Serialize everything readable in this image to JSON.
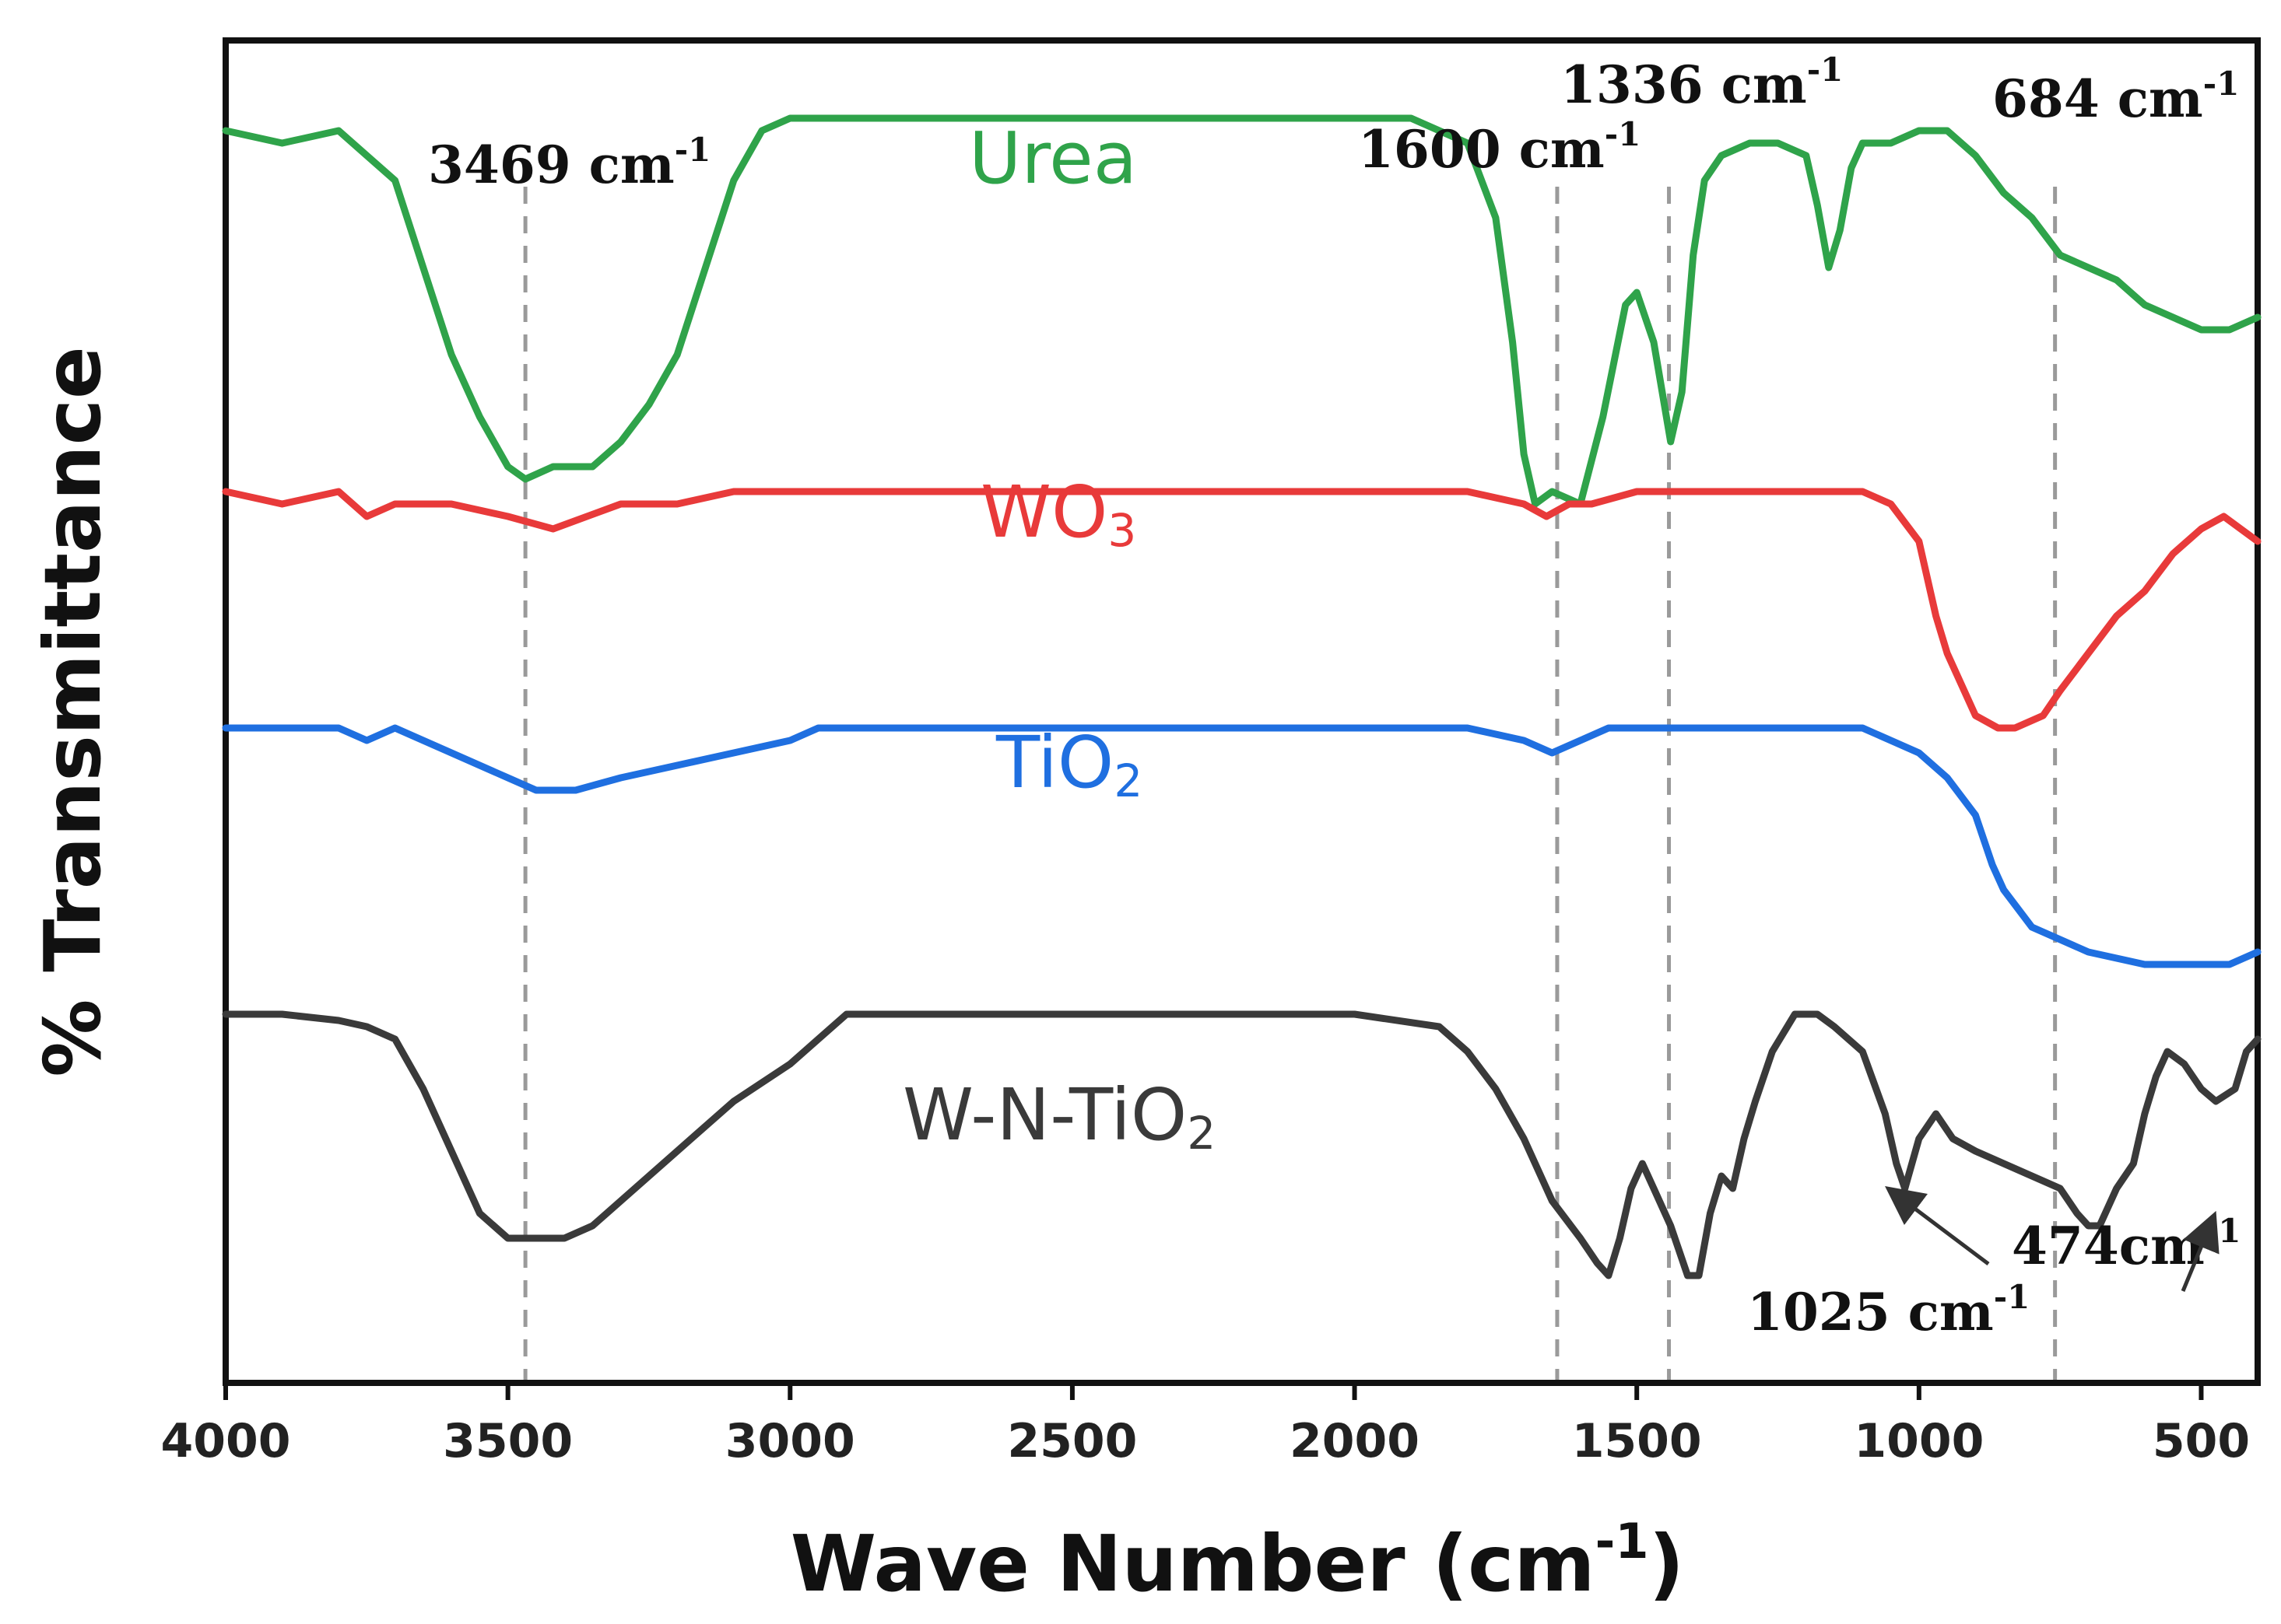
{
  "chart_data": {
    "type": "line",
    "title": "",
    "xlabel": "Wave Number (cm",
    "xlabel_sup": "-1",
    "xlabel_close": ")",
    "ylabel": "% Transmittance",
    "xlim": [
      4000,
      400
    ],
    "xticks": [
      4000,
      3500,
      3000,
      2500,
      2000,
      1500,
      1000,
      500
    ],
    "tick_labels": [
      "4000",
      "3500",
      "3000",
      "2500",
      "2000",
      "1500",
      "1000",
      "500"
    ],
    "yrange_arbitrary": [
      0,
      100
    ],
    "series": [
      {
        "name": "Urea",
        "label_main": "Urea",
        "label_sub": "",
        "color": "#2fa34a",
        "points": [
          [
            4000,
            97
          ],
          [
            3900,
            96
          ],
          [
            3800,
            97
          ],
          [
            3750,
            95
          ],
          [
            3700,
            93
          ],
          [
            3650,
            86
          ],
          [
            3600,
            79
          ],
          [
            3550,
            74
          ],
          [
            3500,
            70
          ],
          [
            3469,
            69
          ],
          [
            3420,
            70
          ],
          [
            3350,
            70
          ],
          [
            3300,
            72
          ],
          [
            3250,
            75
          ],
          [
            3200,
            79
          ],
          [
            3150,
            86
          ],
          [
            3100,
            93
          ],
          [
            3050,
            97
          ],
          [
            3000,
            98
          ],
          [
            2900,
            98
          ],
          [
            2700,
            98
          ],
          [
            2500,
            98
          ],
          [
            2300,
            98
          ],
          [
            2100,
            98
          ],
          [
            1900,
            98
          ],
          [
            1800,
            96
          ],
          [
            1750,
            90
          ],
          [
            1720,
            80
          ],
          [
            1700,
            71
          ],
          [
            1680,
            67
          ],
          [
            1650,
            68
          ],
          [
            1600,
            67
          ],
          [
            1560,
            74
          ],
          [
            1520,
            83
          ],
          [
            1500,
            84
          ],
          [
            1470,
            80
          ],
          [
            1440,
            72
          ],
          [
            1420,
            76
          ],
          [
            1400,
            87
          ],
          [
            1380,
            93
          ],
          [
            1350,
            95
          ],
          [
            1300,
            96
          ],
          [
            1250,
            96
          ],
          [
            1200,
            95
          ],
          [
            1180,
            91
          ],
          [
            1160,
            86
          ],
          [
            1140,
            89
          ],
          [
            1120,
            94
          ],
          [
            1100,
            96
          ],
          [
            1050,
            96
          ],
          [
            1000,
            97
          ],
          [
            950,
            97
          ],
          [
            900,
            95
          ],
          [
            850,
            92
          ],
          [
            800,
            90
          ],
          [
            750,
            87
          ],
          [
            700,
            86
          ],
          [
            650,
            85
          ],
          [
            600,
            83
          ],
          [
            550,
            82
          ],
          [
            500,
            81
          ],
          [
            450,
            81
          ],
          [
            400,
            82
          ]
        ]
      },
      {
        "name": "WO3",
        "label_main": "WO",
        "label_sub": "3",
        "color": "#e83a3a",
        "points": [
          [
            4000,
            68
          ],
          [
            3900,
            67
          ],
          [
            3800,
            68
          ],
          [
            3750,
            66
          ],
          [
            3700,
            67
          ],
          [
            3600,
            67
          ],
          [
            3500,
            66
          ],
          [
            3420,
            65
          ],
          [
            3300,
            67
          ],
          [
            3200,
            67
          ],
          [
            3100,
            68
          ],
          [
            3000,
            68
          ],
          [
            2800,
            68
          ],
          [
            2500,
            68
          ],
          [
            2200,
            68
          ],
          [
            2000,
            68
          ],
          [
            1800,
            68
          ],
          [
            1700,
            67
          ],
          [
            1660,
            66
          ],
          [
            1620,
            67
          ],
          [
            1580,
            67
          ],
          [
            1500,
            68
          ],
          [
            1400,
            68
          ],
          [
            1300,
            68
          ],
          [
            1200,
            68
          ],
          [
            1100,
            68
          ],
          [
            1050,
            67
          ],
          [
            1000,
            64
          ],
          [
            970,
            58
          ],
          [
            950,
            55
          ],
          [
            900,
            50
          ],
          [
            860,
            49
          ],
          [
            830,
            49
          ],
          [
            780,
            50
          ],
          [
            750,
            52
          ],
          [
            700,
            55
          ],
          [
            650,
            58
          ],
          [
            600,
            60
          ],
          [
            550,
            63
          ],
          [
            500,
            65
          ],
          [
            460,
            66
          ],
          [
            430,
            65
          ],
          [
            400,
            64
          ]
        ]
      },
      {
        "name": "TiO2",
        "label_main": "TiO",
        "label_sub": "2",
        "color": "#1f6fe0",
        "points": [
          [
            4000,
            49
          ],
          [
            3900,
            49
          ],
          [
            3800,
            49
          ],
          [
            3750,
            48
          ],
          [
            3700,
            49
          ],
          [
            3650,
            48
          ],
          [
            3600,
            47
          ],
          [
            3500,
            45
          ],
          [
            3450,
            44
          ],
          [
            3380,
            44
          ],
          [
            3300,
            45
          ],
          [
            3200,
            46
          ],
          [
            3100,
            47
          ],
          [
            3000,
            48
          ],
          [
            2950,
            49
          ],
          [
            2800,
            49
          ],
          [
            2500,
            49
          ],
          [
            2200,
            49
          ],
          [
            2000,
            49
          ],
          [
            1800,
            49
          ],
          [
            1700,
            48
          ],
          [
            1650,
            47
          ],
          [
            1600,
            48
          ],
          [
            1550,
            49
          ],
          [
            1500,
            49
          ],
          [
            1400,
            49
          ],
          [
            1300,
            49
          ],
          [
            1200,
            49
          ],
          [
            1100,
            49
          ],
          [
            1050,
            48
          ],
          [
            1000,
            47
          ],
          [
            950,
            45
          ],
          [
            900,
            42
          ],
          [
            870,
            38
          ],
          [
            850,
            36
          ],
          [
            800,
            33
          ],
          [
            750,
            32
          ],
          [
            700,
            31
          ],
          [
            650,
            30.5
          ],
          [
            600,
            30
          ],
          [
            500,
            30
          ],
          [
            450,
            30
          ],
          [
            400,
            31
          ]
        ]
      },
      {
        "name": "W-N-TiO2",
        "label_main": "W-N-TiO",
        "label_sub": "2",
        "color": "#3a3a3a",
        "points": [
          [
            4000,
            26
          ],
          [
            3900,
            26
          ],
          [
            3800,
            25.5
          ],
          [
            3750,
            25
          ],
          [
            3700,
            24
          ],
          [
            3650,
            20
          ],
          [
            3600,
            15
          ],
          [
            3550,
            10
          ],
          [
            3500,
            8
          ],
          [
            3469,
            8
          ],
          [
            3400,
            8
          ],
          [
            3350,
            9
          ],
          [
            3300,
            11
          ],
          [
            3200,
            15
          ],
          [
            3100,
            19
          ],
          [
            3000,
            22
          ],
          [
            2950,
            24
          ],
          [
            2900,
            26
          ],
          [
            2800,
            26
          ],
          [
            2600,
            26
          ],
          [
            2400,
            26
          ],
          [
            2200,
            26
          ],
          [
            2000,
            26
          ],
          [
            1850,
            25
          ],
          [
            1800,
            23
          ],
          [
            1750,
            20
          ],
          [
            1700,
            16
          ],
          [
            1650,
            11
          ],
          [
            1600,
            8
          ],
          [
            1570,
            6
          ],
          [
            1550,
            5
          ],
          [
            1530,
            8
          ],
          [
            1510,
            12
          ],
          [
            1490,
            14
          ],
          [
            1470,
            12
          ],
          [
            1440,
            9
          ],
          [
            1410,
            5
          ],
          [
            1390,
            5
          ],
          [
            1370,
            10
          ],
          [
            1350,
            13
          ],
          [
            1330,
            12
          ],
          [
            1310,
            16
          ],
          [
            1290,
            19
          ],
          [
            1260,
            23
          ],
          [
            1220,
            26
          ],
          [
            1180,
            26
          ],
          [
            1150,
            25
          ],
          [
            1100,
            23
          ],
          [
            1060,
            18
          ],
          [
            1040,
            14
          ],
          [
            1025,
            12
          ],
          [
            1000,
            16
          ],
          [
            970,
            18
          ],
          [
            940,
            16
          ],
          [
            900,
            15
          ],
          [
            850,
            14
          ],
          [
            800,
            13
          ],
          [
            750,
            12
          ],
          [
            720,
            10
          ],
          [
            700,
            9
          ],
          [
            680,
            9
          ],
          [
            650,
            12
          ],
          [
            620,
            14
          ],
          [
            600,
            18
          ],
          [
            580,
            21
          ],
          [
            560,
            23
          ],
          [
            530,
            22
          ],
          [
            500,
            20
          ],
          [
            474,
            19
          ],
          [
            440,
            20
          ],
          [
            420,
            23
          ],
          [
            400,
            24
          ]
        ]
      }
    ],
    "reference_lines": [
      3469,
      1641,
      1443,
      759
    ],
    "annotations": [
      {
        "text": "3469 cm",
        "sup": "-1"
      },
      {
        "text": "1600 cm",
        "sup": "-1"
      },
      {
        "text": "1336 cm",
        "sup": "-1"
      },
      {
        "text": "684 cm",
        "sup": "-1"
      },
      {
        "text": "1025 cm",
        "sup": "-1"
      },
      {
        "text": "474cm",
        "sup": "-1"
      }
    ]
  }
}
